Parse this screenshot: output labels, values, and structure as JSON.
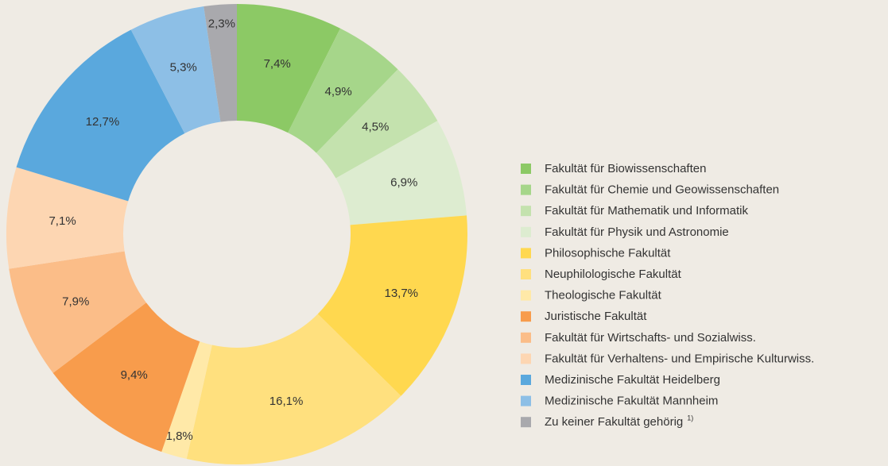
{
  "chart_data": {
    "type": "donut",
    "categories": [
      "Fakultät für Biowissenschaften",
      "Fakultät für Chemie und Geowissenschaften",
      "Fakultät für Mathematik und Informatik",
      "Fakultät für Physik und Astronomie",
      "Philosophische Fakultät",
      "Neuphilologische Fakultät",
      "Theologische Fakultät",
      "Juristische Fakultät",
      "Fakultät für Wirtschafts- und Sozialwiss.",
      "Fakultät für Verhaltens- und Empirische Kulturwiss.",
      "Medizinische Fakultät Heidelberg",
      "Medizinische Fakultät Mannheim",
      "Zu keiner Fakultät gehörig"
    ],
    "values": [
      7.4,
      4.9,
      4.5,
      6.9,
      13.7,
      16.1,
      1.8,
      9.4,
      7.9,
      7.1,
      12.7,
      5.3,
      2.3
    ],
    "value_labels": [
      "7,4%",
      "4,9%",
      "4,5%",
      "6,9%",
      "13,7%",
      "16,1%",
      "1,8%",
      "9,4%",
      "7,9%",
      "7,1%",
      "12,7%",
      "5,3%",
      "2,3%"
    ],
    "colors": [
      "#8cc965",
      "#a6d68a",
      "#c4e2ae",
      "#ddecd0",
      "#ffd84f",
      "#ffe07e",
      "#ffe9a8",
      "#f89c4c",
      "#fbbd88",
      "#fdd6b2",
      "#5aa8dd",
      "#8dbfe6",
      "#a9a9ad"
    ],
    "legend_note": "1)"
  }
}
